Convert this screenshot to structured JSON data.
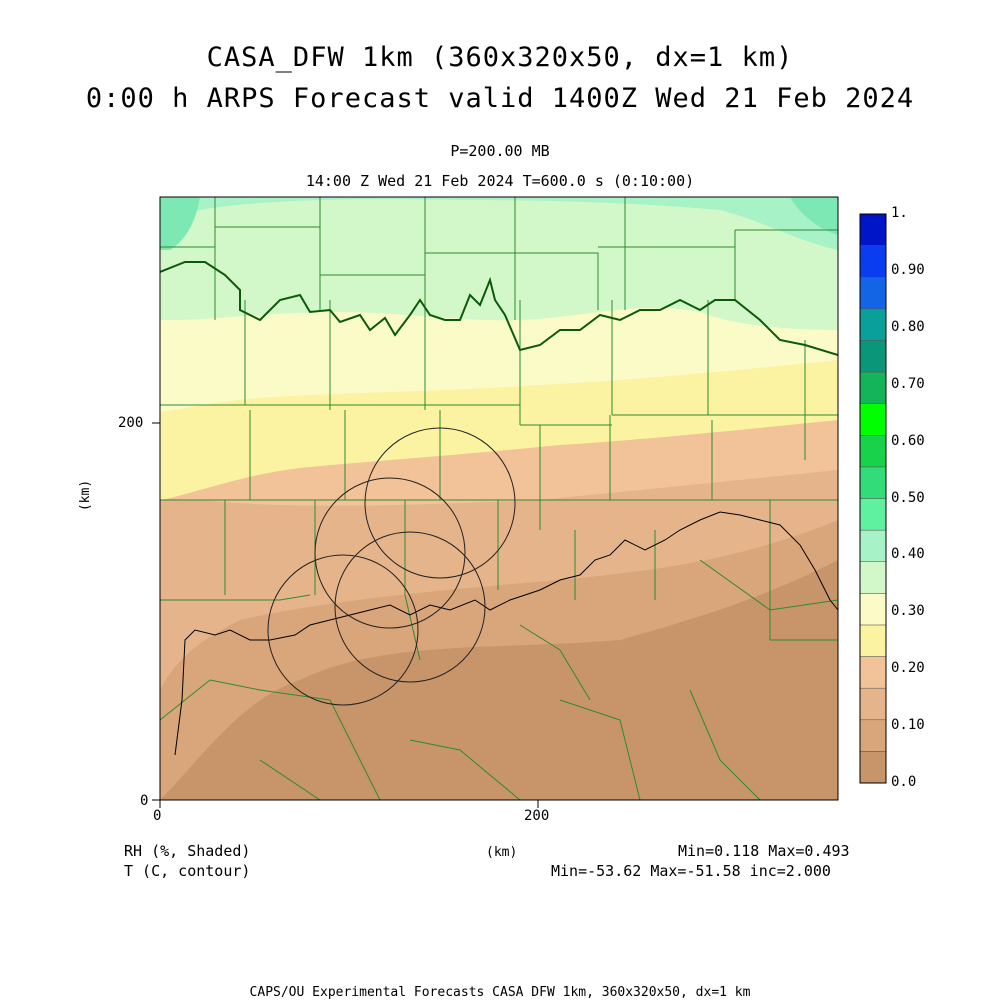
{
  "titles": {
    "line1": "CASA_DFW 1km (360x320x50, dx=1 km)",
    "line2": "0:00 h ARPS Forecast valid 1400Z Wed 21 Feb 2024",
    "pressure": "P=200.00 MB",
    "time": "14:00 Z Wed 21 Feb 2024    T=600.0 s (0:10:00)"
  },
  "axes": {
    "x_ticks": [
      "0",
      "200"
    ],
    "y_ticks": [
      "0",
      "200"
    ],
    "x_unit": "(km)",
    "y_unit": "(km)"
  },
  "fields": {
    "shaded_label": "RH (%, Shaded)",
    "contour_label": "T (C, contour)",
    "shaded_stats": "Min=0.118 Max=0.493",
    "contour_stats": "Min=-53.62 Max=-51.58 inc=2.000"
  },
  "colorbar": {
    "labels": [
      "1.",
      "0.90",
      "0.80",
      "0.70",
      "0.60",
      "0.50",
      "0.40",
      "0.30",
      "0.20",
      "0.10",
      "0.0"
    ],
    "colors": [
      "#c8956a",
      "#d9a57a",
      "#e6b48a",
      "#f2c298",
      "#fbf3a2",
      "#fbfbc8",
      "#d2f7c8",
      "#a8f2c8",
      "#5ff0a0",
      "#32dc78",
      "#17d24a",
      "#00ff00",
      "#14b45a",
      "#0a9678",
      "#0aa09a",
      "#1464e6",
      "#0a3cf0",
      "#0014c8"
    ]
  },
  "footer": "CAPS/OU Experimental Forecasts  CASA DFW 1km, 360x320x50, dx=1 km"
}
